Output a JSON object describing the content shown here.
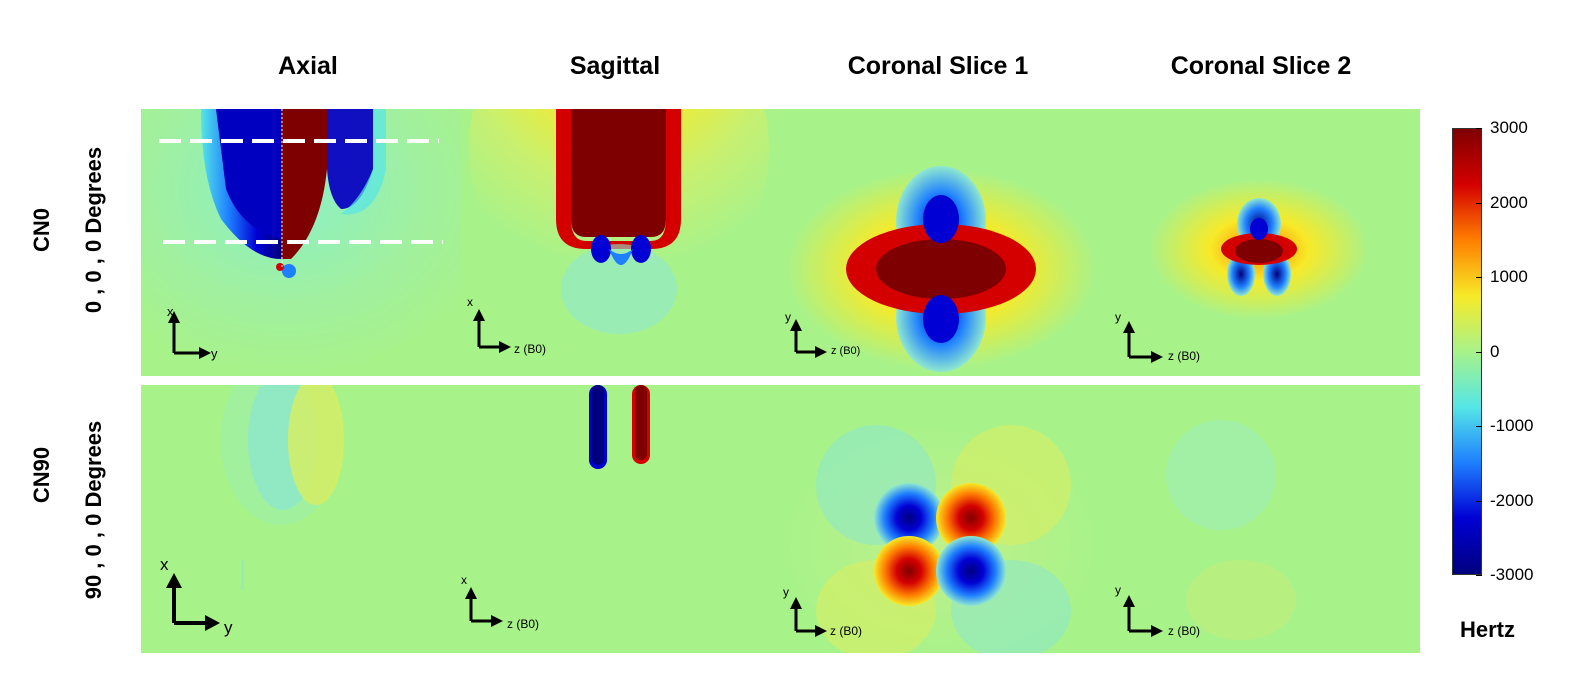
{
  "columns": [
    "Axial",
    "Sagittal",
    "Coronal Slice 1",
    "Coronal Slice 2"
  ],
  "rows": [
    {
      "name": "CN0",
      "angles": "0 , 0 , 0  Degrees"
    },
    {
      "name": "CN90",
      "angles": "90 , 0 , 0  Degrees"
    }
  ],
  "axes": {
    "axial": {
      "vertical": "x",
      "horizontal": "y"
    },
    "sagittal": {
      "vertical": "x",
      "horizontal": "z (B0)"
    },
    "coronal": {
      "vertical": "y",
      "horizontal": "z (B0)"
    }
  },
  "colorbar": {
    "unit": "Hertz",
    "ticks": [
      "3000",
      "2000",
      "1000",
      "0",
      "-1000",
      "-2000",
      "-3000"
    ],
    "colors": [
      "#7f0000",
      "#d40000",
      "#ff7f00",
      "#f7ea28",
      "#a8f28a",
      "#55e6e6",
      "#1e7fff",
      "#0000d4",
      "#00007f"
    ]
  }
}
